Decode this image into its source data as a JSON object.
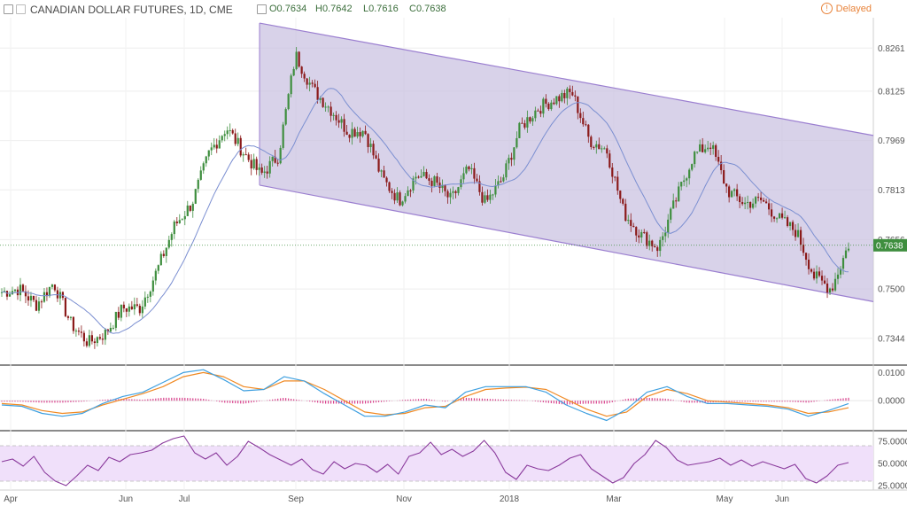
{
  "header": {
    "symbol": "CANADIAN DOLLAR FUTURES, 1D, CME",
    "open": "O0.7634",
    "high": "H0.7642",
    "low": "L0.7616",
    "close": "C0.7638",
    "status": "Delayed"
  },
  "colors": {
    "up": "#3e8e3e",
    "down": "#8b1a1a",
    "sma": "#7b8fd1",
    "channel_fill": "#c8bfe0",
    "channel_line": "#9b7fd0",
    "macd": "#3fa0e0",
    "signal": "#f08a24",
    "hist": "#d9418c",
    "rsi": "#8a3a9c",
    "rsi_band": "#f0e0fa",
    "price_tag": "#3e8e3e",
    "delayed": "#e8833a"
  },
  "chart_data": [
    {
      "type": "candlestick",
      "title": "CANADIAN DOLLAR FUTURES, 1D, CME",
      "x_labels": [
        "Apr",
        "Jun",
        "Jul",
        "Sep",
        "Nov",
        "2018",
        "Mar",
        "May",
        "Jun"
      ],
      "y_ticks": [
        "0.8261",
        "0.8125",
        "0.7969",
        "0.7813",
        "0.7656",
        "0.7500",
        "0.7344"
      ],
      "ylim": [
        0.7265,
        0.8357
      ],
      "last_price": "0.7638",
      "indicators": [
        "Moving average",
        "Descending channel"
      ],
      "channel": {
        "upper": [
          [
            "Aug 2017",
            0.834
          ],
          [
            "Jul 2018",
            0.7985
          ]
        ],
        "lower": [
          [
            "Aug 2017",
            0.7828
          ],
          [
            "Jul 2018",
            0.746
          ]
        ]
      },
      "price_path": [
        [
          "Mar 2017",
          0.749
        ],
        [
          "Apr 2017",
          0.75
        ],
        [
          "Apr 2017",
          0.745
        ],
        [
          "Apr 2017",
          0.752
        ],
        [
          "May 2017",
          0.739
        ],
        [
          "May 2017",
          0.733
        ],
        [
          "May 2017",
          0.736
        ],
        [
          "Jun 2017",
          0.744
        ],
        [
          "Jun 2017",
          0.744
        ],
        [
          "Jun 2017",
          0.756
        ],
        [
          "Jul 2017",
          0.77
        ],
        [
          "Jul 2017",
          0.777
        ],
        [
          "Jul 2017",
          0.793
        ],
        [
          "Jul 2017",
          0.801
        ],
        [
          "Aug 2017",
          0.793
        ],
        [
          "Aug 2017",
          0.786
        ],
        [
          "Aug 2017",
          0.792
        ],
        [
          "Sep 2017",
          0.824
        ],
        [
          "Sep 2017",
          0.813
        ],
        [
          "Sep 2017",
          0.807
        ],
        [
          "Oct 2017",
          0.8
        ],
        [
          "Oct 2017",
          0.8
        ],
        [
          "Oct 2017",
          0.785
        ],
        [
          "Nov 2017",
          0.778
        ],
        [
          "Nov 2017",
          0.786
        ],
        [
          "Nov 2017",
          0.784
        ],
        [
          "Dec 2017",
          0.778
        ],
        [
          "Dec 2017",
          0.788
        ],
        [
          "Dec 2017",
          0.777
        ],
        [
          "Jan 2018",
          0.785
        ],
        [
          "Jan 2018",
          0.801
        ],
        [
          "Jan 2018",
          0.807
        ],
        [
          "Feb 2018",
          0.81
        ],
        [
          "Feb 2018",
          0.812
        ],
        [
          "Feb 2018",
          0.797
        ],
        [
          "Feb 2018",
          0.794
        ],
        [
          "Mar 2018",
          0.774
        ],
        [
          "Mar 2018",
          0.767
        ],
        [
          "Mar 2018",
          0.763
        ],
        [
          "Apr 2018",
          0.778
        ],
        [
          "Apr 2018",
          0.792
        ],
        [
          "Apr 2018",
          0.796
        ],
        [
          "Apr 2018",
          0.781
        ],
        [
          "May 2018",
          0.777
        ],
        [
          "May 2018",
          0.778
        ],
        [
          "May 2018",
          0.772
        ],
        [
          "Jun 2018",
          0.768
        ],
        [
          "Jun 2018",
          0.754
        ],
        [
          "Jun 2018",
          0.75
        ],
        [
          "Jul 2018",
          0.764
        ]
      ]
    },
    {
      "type": "line",
      "name_hint": "MACD panel",
      "y_ticks": [
        "0.0100",
        "0.0000"
      ],
      "ylim": [
        -0.01,
        0.012
      ],
      "series": [
        {
          "name": "",
          "values": [
            -0.0015,
            -0.002,
            -0.0045,
            -0.0055,
            -0.0045,
            -0.001,
            0.0015,
            0.003,
            0.0065,
            0.01,
            0.011,
            0.0075,
            0.0035,
            0.004,
            0.0085,
            0.007,
            0.0025,
            -0.0015,
            -0.0055,
            -0.0055,
            -0.004,
            -0.0015,
            -0.0025,
            0.003,
            0.005,
            0.005,
            0.005,
            0.003,
            -0.0015,
            -0.0045,
            -0.007,
            -0.003,
            0.003,
            0.005,
            0.0015,
            -0.001,
            -0.001,
            -0.0015,
            -0.002,
            -0.003,
            -0.0055,
            -0.0035,
            -0.001
          ]
        },
        {
          "name": "",
          "values": [
            -0.001,
            -0.0015,
            -0.0035,
            -0.0045,
            -0.004,
            -0.0015,
            0.0005,
            0.0025,
            0.005,
            0.0085,
            0.01,
            0.0085,
            0.005,
            0.004,
            0.007,
            0.007,
            0.004,
            0.0,
            -0.004,
            -0.005,
            -0.0045,
            -0.0025,
            -0.002,
            0.0015,
            0.004,
            0.0045,
            0.0048,
            0.004,
            0.0005,
            -0.003,
            -0.0055,
            -0.004,
            0.0015,
            0.004,
            0.0025,
            0.0,
            -0.0005,
            -0.001,
            -0.0015,
            -0.0025,
            -0.0045,
            -0.004,
            -0.0025
          ]
        }
      ]
    },
    {
      "type": "line",
      "name_hint": "RSI panel",
      "y_ticks": [
        "75.0000",
        "50.0000",
        "25.0000"
      ],
      "ylim": [
        20,
        85
      ],
      "band": [
        30,
        70
      ],
      "series": [
        {
          "name": "",
          "values": [
            52,
            55,
            47,
            58,
            40,
            30,
            25,
            36,
            48,
            42,
            57,
            52,
            60,
            62,
            65,
            73,
            78,
            81,
            62,
            55,
            62,
            48,
            58,
            75,
            68,
            60,
            54,
            48,
            55,
            43,
            38,
            52,
            44,
            50,
            48,
            40,
            49,
            38,
            58,
            62,
            74,
            60,
            66,
            58,
            64,
            76,
            62,
            40,
            32,
            48,
            44,
            42,
            48,
            56,
            60,
            44,
            36,
            28,
            34,
            50,
            60,
            76,
            68,
            54,
            48,
            50,
            52,
            56,
            48,
            54,
            47,
            52,
            48,
            44,
            49,
            33,
            28,
            36,
            48,
            51
          ]
        }
      ]
    }
  ]
}
